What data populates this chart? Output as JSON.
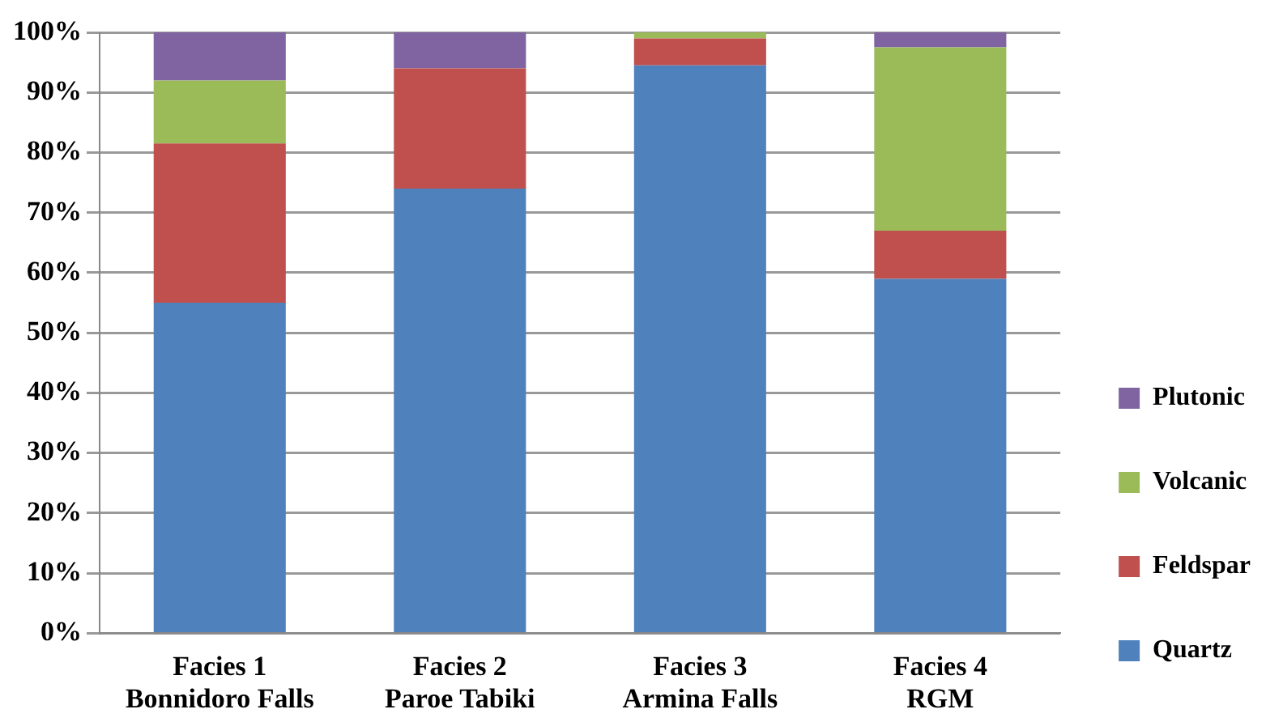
{
  "chart_data": {
    "type": "bar",
    "stacked": true,
    "categories": [
      "Facies 1\nBonnidoro Falls",
      "Facies 2\nParoe Tabiki",
      "Facies 3\nArmina Falls",
      "Facies 4\nRGM"
    ],
    "series": [
      {
        "name": "Quartz",
        "color": "#4f81bd",
        "values": [
          55,
          74,
          94.5,
          59
        ]
      },
      {
        "name": "Feldspar",
        "color": "#c0504d",
        "values": [
          26.5,
          20,
          4.5,
          8
        ]
      },
      {
        "name": "Volcanic",
        "color": "#9bbb59",
        "values": [
          10.5,
          0,
          1,
          30.5
        ]
      },
      {
        "name": "Plutonic",
        "color": "#8064a2",
        "values": [
          8,
          6,
          0,
          2.5
        ]
      }
    ],
    "ylim": [
      0,
      100
    ],
    "yticks": [
      {
        "value": 0,
        "label": "0%"
      },
      {
        "value": 10,
        "label": "10%"
      },
      {
        "value": 20,
        "label": "20%"
      },
      {
        "value": 30,
        "label": "30%"
      },
      {
        "value": 40,
        "label": "40%"
      },
      {
        "value": 50,
        "label": "50%"
      },
      {
        "value": 60,
        "label": "60%"
      },
      {
        "value": 70,
        "label": "70%"
      },
      {
        "value": 80,
        "label": "80%"
      },
      {
        "value": 90,
        "label": "90%"
      },
      {
        "value": 100,
        "label": "100%"
      }
    ],
    "grid": "y",
    "legend": "right"
  }
}
